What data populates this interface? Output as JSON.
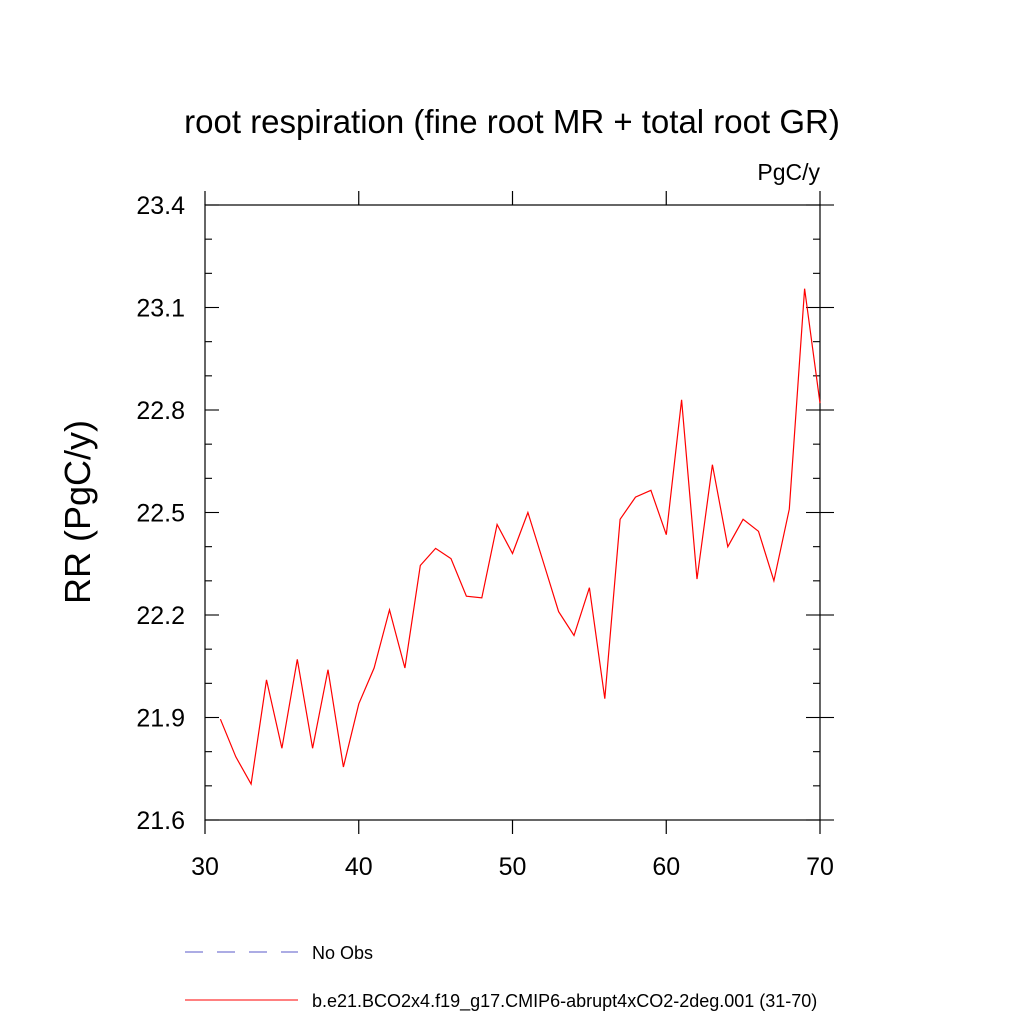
{
  "chart_data": {
    "type": "line",
    "title": "root respiration (fine root MR + total root GR)",
    "units": "PgC/y",
    "xlabel": "",
    "ylabel": "RR  (PgC/y)",
    "xlim": [
      30,
      70
    ],
    "ylim": [
      21.6,
      23.4
    ],
    "x_ticks": [
      30,
      40,
      50,
      60,
      70
    ],
    "x_tick_labels": [
      "30",
      "40",
      "50",
      "60",
      "70"
    ],
    "y_ticks": [
      21.6,
      21.9,
      22.2,
      22.5,
      22.8,
      23.1,
      23.4
    ],
    "y_tick_labels": [
      "21.6",
      "21.9",
      "22.2",
      "22.5",
      "22.8",
      "23.1",
      "23.4"
    ],
    "grid": false,
    "legend_position": "bottom",
    "legend": [
      {
        "label": "No Obs",
        "color": "#5a5ac8",
        "style": "dashed"
      },
      {
        "label": "b.e21.BCO2x4.f19_g17.CMIP6-abrupt4xCO2-2deg.001 (31-70)",
        "color": "#ff0000",
        "style": "solid"
      }
    ],
    "series": [
      {
        "name": "b.e21.BCO2x4.f19_g17.CMIP6-abrupt4xCO2-2deg.001 (31-70)",
        "color": "#ff0000",
        "x": [
          31,
          32,
          33,
          34,
          35,
          36,
          37,
          38,
          39,
          40,
          41,
          42,
          43,
          44,
          45,
          46,
          47,
          48,
          49,
          50,
          51,
          52,
          53,
          54,
          55,
          56,
          57,
          58,
          59,
          60,
          61,
          62,
          63,
          64,
          65,
          66,
          67,
          68,
          69,
          70
        ],
        "values": [
          21.895,
          21.785,
          21.705,
          22.01,
          21.81,
          22.07,
          21.81,
          22.04,
          21.755,
          21.94,
          22.045,
          22.215,
          22.045,
          22.345,
          22.395,
          22.365,
          22.255,
          22.25,
          22.465,
          22.38,
          22.5,
          22.355,
          22.21,
          22.14,
          22.28,
          21.955,
          22.48,
          22.545,
          22.565,
          22.435,
          22.83,
          22.305,
          22.64,
          22.4,
          22.48,
          22.445,
          22.3,
          22.51,
          23.155,
          22.82
        ]
      }
    ]
  }
}
